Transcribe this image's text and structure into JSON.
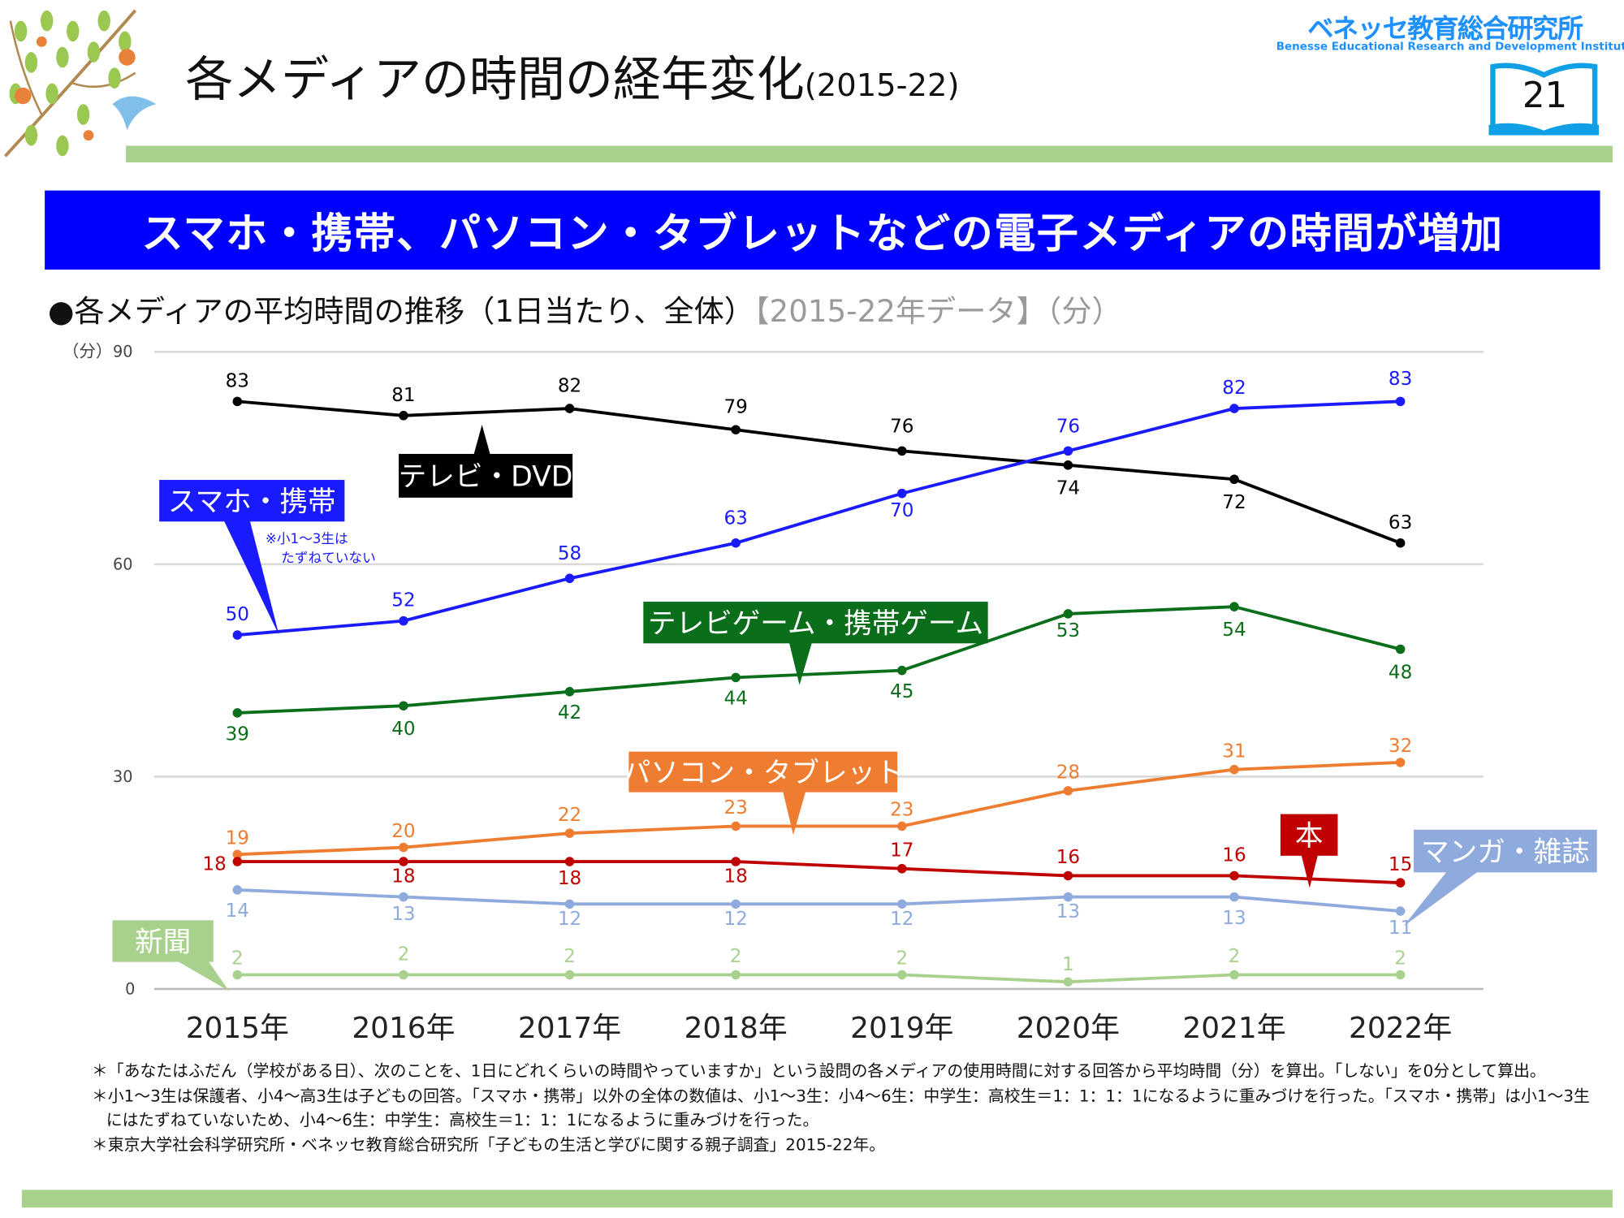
{
  "header": {
    "title": "各メディアの時間の経年変化",
    "title_years": "(2015-22)",
    "logo_jp": "ベネッセ教育総合研究所",
    "logo_en": "Benesse Educational Research and Development Institute",
    "page_number": "21"
  },
  "banner": "スマホ・携帯、パソコン・タブレットなどの電子メディアの時間が増加",
  "subtitle": {
    "main": "●各メディアの平均時間の推移（1日当たり、全体）",
    "bracket": "【2015-22年データ】（分）"
  },
  "chart_data": {
    "type": "line",
    "ylabel": "（分）",
    "ylim": [
      0,
      90
    ],
    "yticks": [
      "0",
      "30",
      "60",
      "90"
    ],
    "categories": [
      "2015年",
      "2016年",
      "2017年",
      "2018年",
      "2019年",
      "2020年",
      "2021年",
      "2022年"
    ],
    "grid": true,
    "series": [
      {
        "name": "テレビ・DVD",
        "color": "#000000",
        "values": [
          83,
          81,
          82,
          79,
          76,
          74,
          72,
          63
        ]
      },
      {
        "name": "スマホ・携帯",
        "color": "#1a1aff",
        "values": [
          50,
          52,
          58,
          63,
          70,
          76,
          82,
          83
        ],
        "note": [
          "※小1～3生は",
          "たずねていない"
        ]
      },
      {
        "name": "テレビゲーム・携帯ゲーム",
        "color": "#0a6e1a",
        "values": [
          39,
          40,
          42,
          44,
          45,
          53,
          54,
          48
        ]
      },
      {
        "name": "パソコン・タブレット",
        "color": "#ef7d31",
        "values": [
          19,
          20,
          22,
          23,
          23,
          28,
          31,
          32
        ]
      },
      {
        "name": "本",
        "color": "#c00000",
        "values": [
          18,
          18,
          18,
          18,
          17,
          16,
          16,
          15
        ]
      },
      {
        "name": "マンガ・雑誌",
        "color": "#8faadc",
        "values": [
          14,
          13,
          12,
          12,
          12,
          13,
          13,
          11
        ]
      },
      {
        "name": "新聞",
        "color": "#a9d18e",
        "values": [
          2,
          2,
          2,
          2,
          2,
          1,
          2,
          2
        ]
      }
    ]
  },
  "notes": [
    "＊「あなたはふだん（学校がある日）、次のことを、1日にどれくらいの時間やっていますか」という設問の各メディアの使用時間に対する回答から平均時間（分）を算出。「しない」を0分として算出。",
    "＊小1～3生は保護者、小4～高3生は子どもの回答。「スマホ・携帯」以外の全体の数値は、小1～3生：小4～6生：中学生：高校生＝1：1：1：1になるように重みづけを行った。「スマホ・携帯」は小1～3生にはたずねていないため、小4～6生：中学生：高校生＝1：1：1になるように重みづけを行った。",
    "＊東京大学社会科学研究所・ベネッセ教育総合研究所「子どもの生活と学びに関する親子調査」2015-22年。"
  ]
}
